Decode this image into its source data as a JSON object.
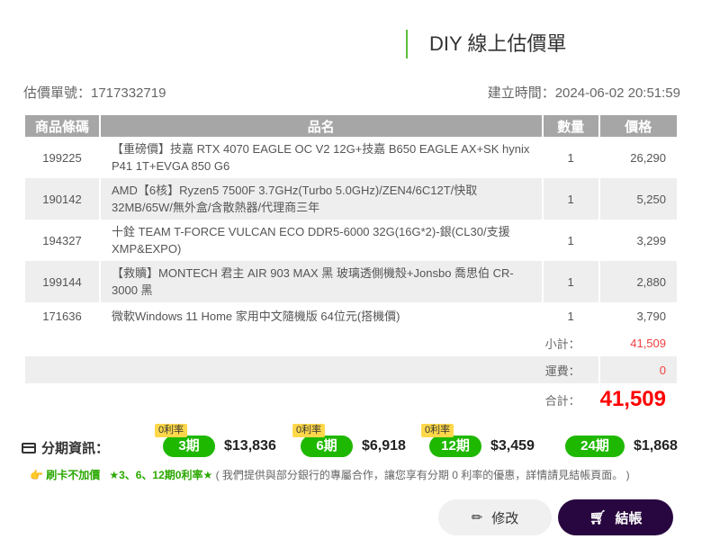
{
  "header": {
    "title": "DIY 線上估價單",
    "quote_no": "估價單號：1717332719",
    "created": "建立時間：2024-06-02 20:51:59"
  },
  "table": {
    "columns": [
      "商品條碼",
      "品名",
      "數量",
      "價格"
    ],
    "rows": [
      {
        "code": "199225",
        "name": "【重磅價】技嘉 RTX 4070 EAGLE OC V2 12G+技嘉 B650 EAGLE AX+SK hynix P41 1T+EVGA 850 G6",
        "qty": "1",
        "price": "26,290"
      },
      {
        "code": "190142",
        "name": "AMD【6核】Ryzen5 7500F 3.7GHz(Turbo 5.0GHz)/ZEN4/6C12T/快取32MB/65W/無外盒/含散熱器/代理商三年",
        "qty": "1",
        "price": "5,250"
      },
      {
        "code": "194327",
        "name": "十銓 TEAM T-FORCE VULCAN ECO DDR5-6000 32G(16G*2)-銀(CL30/支援XMP&EXPO)",
        "qty": "1",
        "price": "3,299"
      },
      {
        "code": "199144",
        "name": "【救贖】MONTECH 君主 AIR 903 MAX 黑 玻璃透側機殼+Jonsbo 喬思伯 CR-3000 黑",
        "qty": "1",
        "price": "2,880"
      },
      {
        "code": "171636",
        "name": "微軟Windows 11 Home 家用中文隨機版 64位元(搭機價)",
        "qty": "1",
        "price": "3,790"
      }
    ],
    "subtotal_label": "小計：",
    "subtotal": "41,509",
    "shipping_label": "運費：",
    "shipping": "0",
    "total_label": "合計：",
    "total": "41,509"
  },
  "installments": {
    "label": "分期資訊：",
    "icon": "credit-card-icon",
    "plans": [
      {
        "badge": "0利率",
        "term": "3期",
        "amount": "$13,836"
      },
      {
        "badge": "0利率",
        "term": "6期",
        "amount": "$6,918"
      },
      {
        "badge": "0利率",
        "term": "12期",
        "amount": "$3,459"
      },
      {
        "term": "24期",
        "amount": "$1,868"
      }
    ]
  },
  "note": {
    "highlight1": "刷卡不加價",
    "highlight2": "★3、6、12期0利率★",
    "text": "( 我們提供與部分銀行的專屬合作，讓您享有分期 0 利率的優惠，詳情請見結帳頁面。 )"
  },
  "buttons": {
    "edit": "修改",
    "checkout": "結帳"
  },
  "colors": {
    "accent_green": "#1fb800",
    "checkout": "#28063f",
    "total_red": "#ff0000"
  }
}
